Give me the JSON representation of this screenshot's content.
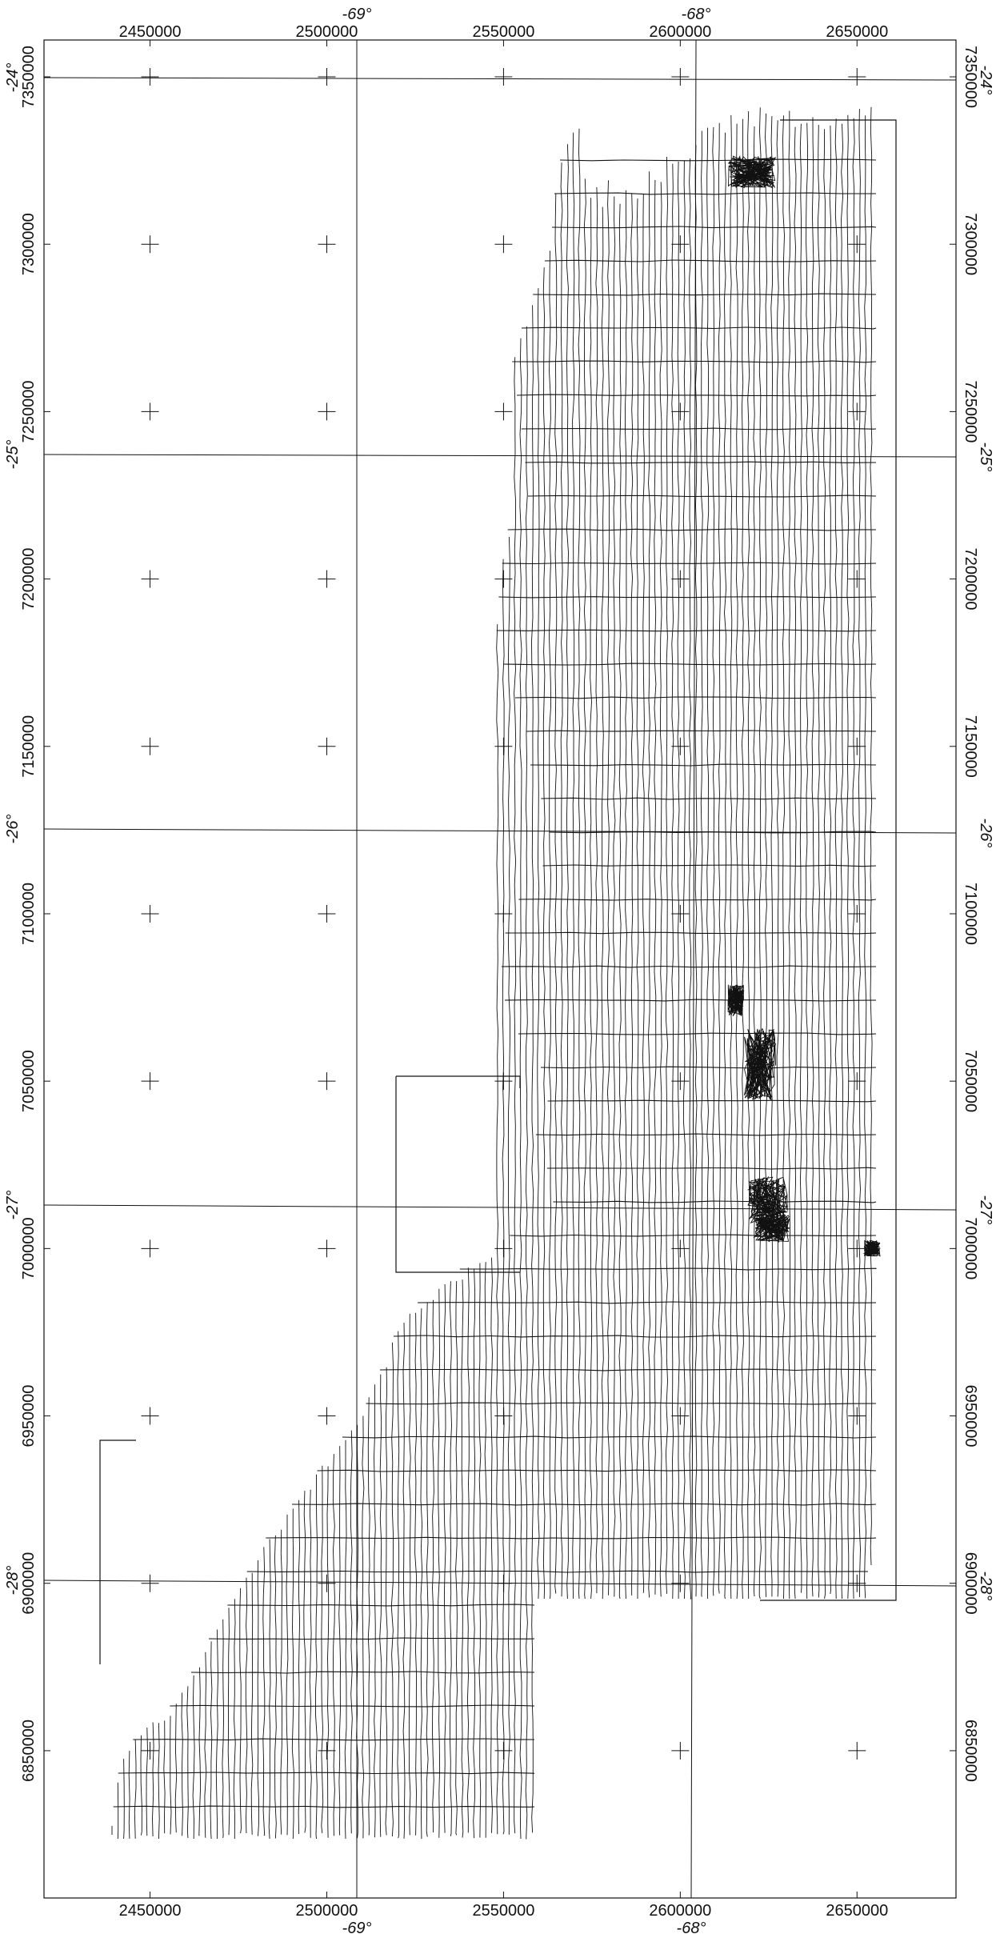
{
  "map": {
    "easting_ticks": [
      {
        "value": 2450000,
        "label": "2450000"
      },
      {
        "value": 2500000,
        "label": "2500000"
      },
      {
        "value": 2550000,
        "label": "2550000"
      },
      {
        "value": 2600000,
        "label": "2600000"
      },
      {
        "value": 2650000,
        "label": "2650000"
      }
    ],
    "northing_ticks": [
      {
        "value": 7350000,
        "label": "7350000"
      },
      {
        "value": 7300000,
        "label": "7300000"
      },
      {
        "value": 7250000,
        "label": "7250000"
      },
      {
        "value": 7200000,
        "label": "7200000"
      },
      {
        "value": 7150000,
        "label": "7150000"
      },
      {
        "value": 7100000,
        "label": "7100000"
      },
      {
        "value": 7050000,
        "label": "7050000"
      },
      {
        "value": 7000000,
        "label": "7000000"
      },
      {
        "value": 6950000,
        "label": "6950000"
      },
      {
        "value": 6900000,
        "label": "6900000"
      },
      {
        "value": 6850000,
        "label": "6850000"
      }
    ],
    "longitudes": [
      {
        "label": "-69°"
      },
      {
        "label": "-68°"
      }
    ],
    "latitudes": [
      {
        "label": "-24°"
      },
      {
        "label": "-25°"
      },
      {
        "label": "-26°"
      },
      {
        "label": "-27°"
      },
      {
        "label": "-28°"
      }
    ],
    "extent": {
      "easting": [
        2420000,
        2678000
      ],
      "northing_top": 7361000,
      "northing_bottom": 6806000
    },
    "line_color": "#111111",
    "background": "#ffffff"
  }
}
